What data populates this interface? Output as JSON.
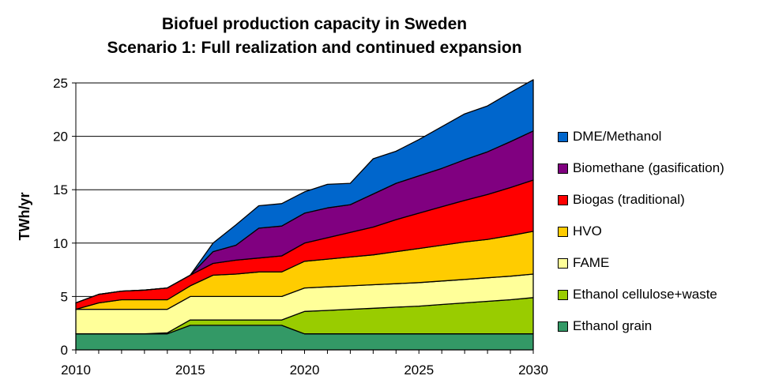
{
  "chart_data": {
    "type": "area",
    "stacked": true,
    "title": "Biofuel production capacity in Sweden",
    "subtitle": "Scenario 1: Full realization and continued expansion",
    "xlabel": "",
    "ylabel": "TWh/yr",
    "xlim": [
      2010,
      2030
    ],
    "ylim": [
      0,
      25
    ],
    "xticks": [
      "2010",
      "2015",
      "2020",
      "2025",
      "2030"
    ],
    "yticks": [
      "0",
      "5",
      "10",
      "15",
      "20",
      "25"
    ],
    "grid": true,
    "legend_position": "right",
    "x": [
      2010,
      2011,
      2012,
      2013,
      2014,
      2015,
      2016,
      2017,
      2018,
      2019,
      2020,
      2021,
      2022,
      2023,
      2024,
      2025,
      2026,
      2027,
      2028,
      2029,
      2030
    ],
    "series": [
      {
        "name": "Ethanol grain",
        "color": "#339966",
        "values": [
          1.5,
          1.5,
          1.5,
          1.5,
          1.5,
          2.3,
          2.3,
          2.3,
          2.3,
          2.3,
          1.5,
          1.5,
          1.5,
          1.5,
          1.5,
          1.5,
          1.5,
          1.5,
          1.5,
          1.5,
          1.5
        ]
      },
      {
        "name": "Ethanol cellulose+waste",
        "color": "#99CC00",
        "values": [
          0,
          0,
          0,
          0,
          0.1,
          0.5,
          0.5,
          0.5,
          0.5,
          0.5,
          2.1,
          2.2,
          2.3,
          2.4,
          2.5,
          2.6,
          2.75,
          2.9,
          3.05,
          3.2,
          3.4
        ]
      },
      {
        "name": "FAME",
        "color": "#FFFF99",
        "values": [
          2.3,
          2.3,
          2.3,
          2.3,
          2.2,
          2.2,
          2.2,
          2.2,
          2.2,
          2.2,
          2.2,
          2.2,
          2.2,
          2.2,
          2.2,
          2.2,
          2.2,
          2.2,
          2.2,
          2.2,
          2.2
        ]
      },
      {
        "name": "HVO",
        "color": "#FFCC00",
        "values": [
          0,
          0.6,
          0.9,
          0.9,
          0.9,
          1.0,
          2.0,
          2.1,
          2.3,
          2.3,
          2.5,
          2.6,
          2.7,
          2.8,
          3.0,
          3.2,
          3.35,
          3.5,
          3.6,
          3.8,
          4.0
        ]
      },
      {
        "name": "Biogas (traditional)",
        "color": "#FF0000",
        "values": [
          0.6,
          0.8,
          0.8,
          0.9,
          1.1,
          1.0,
          1.1,
          1.3,
          1.3,
          1.5,
          1.7,
          2.0,
          2.3,
          2.6,
          3.0,
          3.3,
          3.6,
          3.9,
          4.2,
          4.5,
          4.8
        ]
      },
      {
        "name": "Biomethane (gasification)",
        "color": "#800080",
        "values": [
          0,
          0,
          0,
          0,
          0,
          0,
          1.1,
          1.4,
          2.8,
          2.8,
          2.8,
          2.8,
          2.6,
          3.1,
          3.4,
          3.5,
          3.6,
          3.8,
          4.0,
          4.3,
          4.6
        ]
      },
      {
        "name": "DME/Methanol",
        "color": "#0066CC",
        "values": [
          0,
          0,
          0,
          0,
          0,
          0,
          0.8,
          1.9,
          2.1,
          2.1,
          2.0,
          2.2,
          2.0,
          3.3,
          3.0,
          3.4,
          3.9,
          4.3,
          4.3,
          4.6,
          4.8
        ]
      }
    ]
  }
}
